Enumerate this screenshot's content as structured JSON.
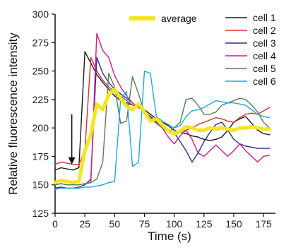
{
  "chart_data": {
    "type": "line",
    "xlabel": "Time (s)",
    "ylabel": "Relative fluorescence intensity",
    "xlim": [
      0,
      185
    ],
    "ylim": [
      125,
      300
    ],
    "xticks": [
      0,
      25,
      50,
      75,
      100,
      125,
      150,
      175
    ],
    "yticks": [
      125,
      150,
      175,
      200,
      225,
      250,
      275,
      300
    ],
    "legend_position": "top-right",
    "annotation": {
      "type": "arrow",
      "x": 14,
      "y_from": 212,
      "y_to": 168,
      "color": "#111111"
    },
    "series": [
      {
        "name": "cell 1",
        "color": "#1a1a1a",
        "x": [
          0,
          5,
          10,
          15,
          20,
          25,
          30,
          35,
          40,
          45,
          50,
          55,
          60,
          65,
          70,
          75,
          80,
          85,
          90,
          95,
          100,
          105,
          110,
          115,
          120,
          125,
          130,
          135,
          140,
          145,
          150,
          155,
          160,
          165,
          170,
          175,
          180
        ],
        "y": [
          163,
          165,
          164,
          163,
          165,
          267,
          257,
          247,
          240,
          234,
          228,
          224,
          222,
          220,
          218,
          216,
          212,
          208,
          205,
          202,
          198,
          196,
          195,
          193,
          192,
          190,
          189,
          190,
          192,
          198,
          205,
          208,
          210,
          204,
          198,
          195,
          194
        ]
      },
      {
        "name": "cell 2",
        "color": "#d93030",
        "x": [
          0,
          5,
          10,
          15,
          20,
          25,
          30,
          35,
          40,
          45,
          50,
          55,
          60,
          65,
          70,
          75,
          80,
          85,
          90,
          95,
          100,
          105,
          110,
          115,
          120,
          125,
          130,
          135,
          140,
          145,
          150,
          155,
          160,
          165,
          170,
          175,
          180
        ],
        "y": [
          168,
          170,
          169,
          168,
          168,
          180,
          262,
          250,
          242,
          236,
          232,
          228,
          224,
          220,
          218,
          214,
          210,
          206,
          202,
          198,
          194,
          196,
          198,
          200,
          203,
          205,
          207,
          209,
          208,
          206,
          205,
          209,
          212,
          213,
          212,
          215,
          218
        ]
      },
      {
        "name": "cell 3",
        "color": "#2e2d8f",
        "x": [
          0,
          5,
          10,
          15,
          20,
          25,
          30,
          35,
          40,
          45,
          50,
          55,
          60,
          65,
          70,
          75,
          80,
          85,
          90,
          95,
          100,
          105,
          110,
          115,
          120,
          125,
          130,
          135,
          140,
          145,
          150,
          155,
          160,
          165,
          170,
          175,
          180
        ],
        "y": [
          147,
          148,
          147,
          147,
          148,
          150,
          155,
          262,
          248,
          240,
          234,
          230,
          226,
          222,
          218,
          214,
          210,
          206,
          202,
          198,
          196,
          188,
          180,
          170,
          178,
          188,
          196,
          203,
          205,
          198,
          190,
          186,
          184,
          183,
          182,
          182,
          182
        ]
      },
      {
        "name": "cell 4",
        "color": "#d01a8f",
        "x": [
          0,
          5,
          10,
          15,
          20,
          25,
          30,
          35,
          40,
          45,
          50,
          55,
          60,
          65,
          70,
          75,
          80,
          85,
          90,
          95,
          100,
          105,
          110,
          115,
          120,
          125,
          130,
          135,
          140,
          145,
          150,
          155,
          160,
          165,
          170,
          175,
          180
        ],
        "y": [
          150,
          151,
          150,
          150,
          150,
          151,
          152,
          283,
          268,
          262,
          246,
          236,
          228,
          222,
          218,
          214,
          209,
          205,
          200,
          192,
          186,
          193,
          198,
          190,
          178,
          175,
          180,
          185,
          180,
          175,
          180,
          186,
          180,
          175,
          170,
          175,
          176
        ]
      },
      {
        "name": "cell 5",
        "color": "#557f4e",
        "x": [
          0,
          5,
          10,
          15,
          20,
          25,
          30,
          35,
          40,
          45,
          50,
          55,
          60,
          65,
          70,
          75,
          80,
          85,
          90,
          95,
          100,
          105,
          110,
          115,
          120,
          125,
          130,
          135,
          140,
          145,
          150,
          155,
          160,
          165,
          170,
          175,
          180
        ],
        "y": [
          150,
          151,
          150,
          150,
          150,
          151,
          152,
          155,
          170,
          248,
          236,
          204,
          206,
          245,
          230,
          214,
          208,
          204,
          200,
          196,
          200,
          205,
          225,
          226,
          220,
          212,
          212,
          214,
          220,
          222,
          224,
          226,
          225,
          220,
          214,
          205,
          200
        ]
      },
      {
        "name": "cell 6",
        "color": "#1ea8e0",
        "x": [
          0,
          5,
          10,
          15,
          20,
          25,
          30,
          35,
          40,
          45,
          50,
          55,
          60,
          65,
          70,
          75,
          80,
          85,
          90,
          95,
          100,
          105,
          110,
          115,
          120,
          125,
          130,
          135,
          140,
          145,
          150,
          155,
          160,
          165,
          170,
          175,
          180
        ],
        "y": [
          146,
          147,
          147,
          147,
          147,
          148,
          148,
          149,
          150,
          152,
          153,
          225,
          232,
          166,
          170,
          250,
          248,
          210,
          206,
          203,
          200,
          202,
          210,
          215,
          216,
          218,
          221,
          224,
          223,
          222,
          222,
          221,
          220,
          216,
          212,
          210,
          209
        ]
      },
      {
        "name": "average",
        "color": "#f5e51f",
        "width": 5,
        "x": [
          0,
          5,
          10,
          15,
          20,
          25,
          30,
          35,
          40,
          45,
          50,
          55,
          60,
          65,
          70,
          75,
          80,
          85,
          90,
          95,
          100,
          105,
          110,
          115,
          120,
          125,
          130,
          135,
          140,
          145,
          150,
          155,
          160,
          165,
          170,
          175,
          180
        ],
        "y": [
          152,
          154,
          153,
          152,
          153,
          180,
          194,
          221,
          216,
          229,
          234,
          226,
          219,
          216,
          221,
          214,
          206,
          208,
          203,
          197,
          195,
          197,
          201,
          200,
          198,
          198,
          200,
          199,
          200,
          199,
          198,
          200,
          200,
          201,
          200,
          199,
          199
        ]
      }
    ],
    "legend_order": [
      "average",
      "cell 1",
      "cell 2",
      "cell 3",
      "cell 4",
      "cell 5",
      "cell 6"
    ]
  }
}
